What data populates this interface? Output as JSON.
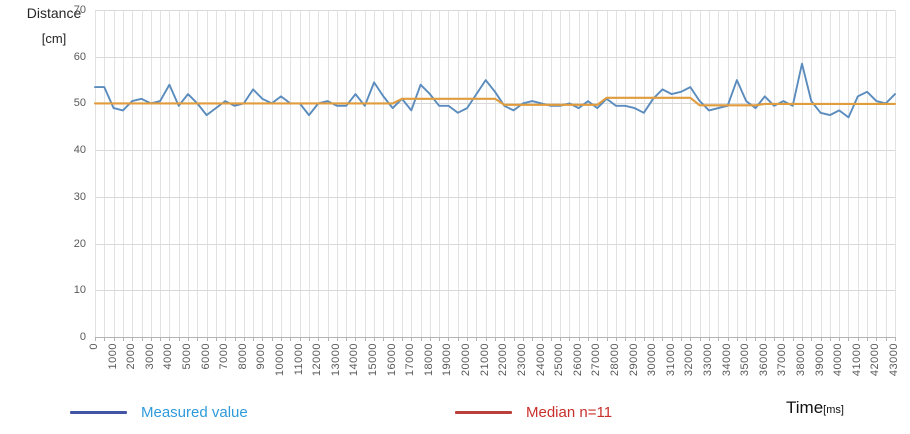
{
  "chart_data": {
    "type": "line",
    "title": "",
    "y_axis": {
      "title_line1": "Distance",
      "title_line2": "[cm]",
      "min": 0,
      "max": 70,
      "tick_step": 10,
      "ticks": [
        0,
        10,
        20,
        30,
        40,
        50,
        60,
        70
      ]
    },
    "x_axis": {
      "title": "Time",
      "title_unit": "[ms]",
      "min": 0,
      "max": 43000,
      "point_step_ms": 500,
      "label_step_ms": 1000,
      "labels": [
        "0",
        "1000",
        "2000",
        "3000",
        "4000",
        "5000",
        "6000",
        "7000",
        "8000",
        "9000",
        "10000",
        "11000",
        "12000",
        "13000",
        "14000",
        "15000",
        "16000",
        "17000",
        "18000",
        "19000",
        "20000",
        "21000",
        "22000",
        "23000",
        "24000",
        "25000",
        "26000",
        "27000",
        "28000",
        "29000",
        "30000",
        "31000",
        "32000",
        "33000",
        "34000",
        "35000",
        "36000",
        "37000",
        "38000",
        "39000",
        "40000",
        "41000",
        "42000",
        "43000"
      ]
    },
    "grid": {
      "on": true,
      "h_color": "#d9d9d9",
      "v_color": "#e2e2e2",
      "axis_color": "#b3b3b3",
      "label_color": "#595959"
    },
    "legend_position": "bottom",
    "series": [
      {
        "name": "Measured value",
        "line_color": "#5b8cbe",
        "legend_swatch_color": "#4154a6",
        "legend_text_color": "#2e9bdb",
        "values": [
          53.5,
          53.5,
          49,
          48.5,
          50.5,
          51,
          50,
          50.5,
          54,
          49.5,
          52,
          50,
          47.5,
          49,
          50.5,
          49.5,
          50,
          53,
          51,
          50,
          51.5,
          50,
          50,
          47.5,
          50,
          50.5,
          49.5,
          49.5,
          52,
          49.5,
          54.5,
          51.5,
          49,
          51,
          48.5,
          54,
          52,
          49.5,
          49.5,
          48,
          49,
          52,
          55,
          52.5,
          49.5,
          48.5,
          50,
          50.5,
          50,
          49.5,
          49.5,
          50,
          49,
          50.5,
          49,
          51,
          49.5,
          49.5,
          49,
          48,
          51,
          53,
          52,
          52.5,
          53.5,
          50.5,
          48.5,
          49,
          49.5,
          55,
          50.5,
          49,
          51.5,
          49.5,
          50.5,
          49.5,
          58.5,
          50.5,
          48,
          47.5,
          48.5,
          47,
          51.5,
          52.5,
          50.5,
          50,
          52
        ]
      },
      {
        "name": "Median n=11",
        "line_color": "#e09c3d",
        "legend_swatch_color": "#bb403c",
        "legend_text_color": "#c9302b",
        "values": [
          50,
          50,
          50,
          50,
          50,
          50,
          50,
          50,
          50,
          50,
          50,
          50,
          50,
          50,
          50,
          50,
          50,
          50,
          50,
          50,
          50,
          50,
          50,
          50,
          50,
          50,
          50,
          50,
          50,
          50,
          50,
          50,
          50,
          51,
          51,
          51,
          51,
          51,
          51,
          51,
          51,
          51,
          51,
          51,
          49.7,
          49.7,
          49.7,
          49.7,
          49.7,
          49.7,
          49.7,
          49.7,
          49.7,
          49.7,
          49.7,
          51.2,
          51.2,
          51.2,
          51.2,
          51.2,
          51.2,
          51.2,
          51.2,
          51.2,
          51.2,
          49.6,
          49.6,
          49.6,
          49.6,
          49.6,
          49.6,
          49.6,
          49.9,
          49.9,
          49.9,
          49.9,
          49.9,
          49.9,
          49.9,
          49.9,
          49.9,
          49.9,
          49.9,
          49.9,
          49.9,
          49.9,
          49.9
        ]
      }
    ]
  }
}
